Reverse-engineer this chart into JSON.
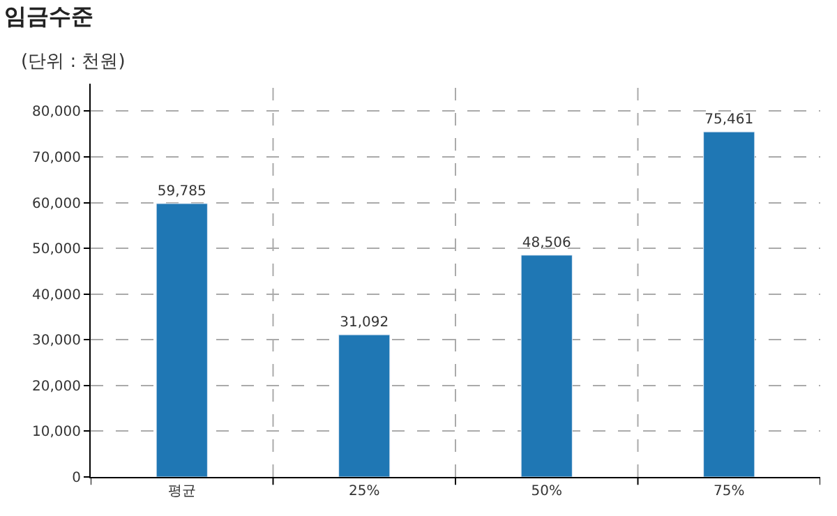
{
  "chart_data": {
    "type": "bar",
    "title": "임금수준",
    "subtitle": "(단위 : 천원)",
    "categories": [
      "평균",
      "25%",
      "50%",
      "75%"
    ],
    "values": [
      59785,
      31092,
      48506,
      75461
    ],
    "value_labels": [
      "59,785",
      "31,092",
      "48,506",
      "75,461"
    ],
    "color": "#1f77b4",
    "ylim": [
      0,
      86000
    ],
    "yticks": [
      0,
      {
        "value": 10000,
        "label": "10,000"
      },
      {
        "value": 20000,
        "label": "20,000"
      },
      {
        "value": 30000,
        "label": "30,000"
      },
      {
        "value": 40000,
        "label": "40,000"
      },
      {
        "value": 50000,
        "label": "50,000"
      },
      {
        "value": 60000,
        "label": "60,000"
      },
      {
        "value": 70000,
        "label": "70,000"
      },
      {
        "value": 80000,
        "label": "80,000"
      }
    ],
    "grid": true
  }
}
